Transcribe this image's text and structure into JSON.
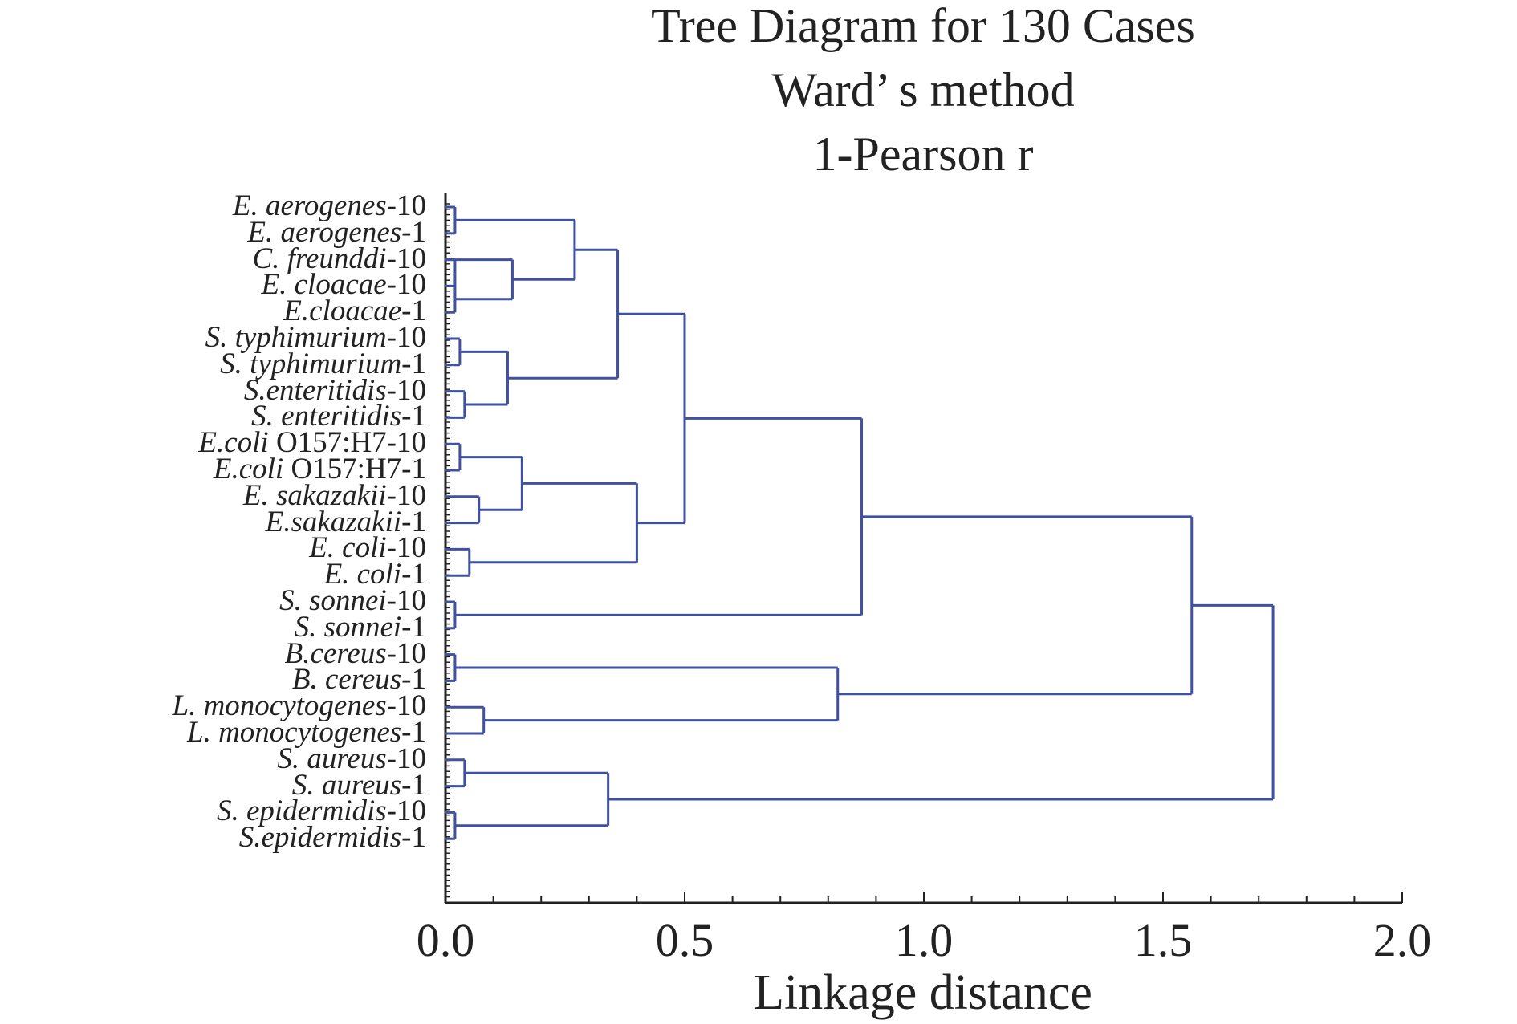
{
  "chart_data": {
    "type": "dendrogram",
    "title": "Tree Diagram for 130 Cases",
    "subtitle_lines": [
      "Ward’ s method",
      "1-Pearson r"
    ],
    "xlabel": "Linkage distance",
    "xlim": [
      0.0,
      2.0
    ],
    "xticks": [
      "0.0",
      "0.5",
      "1.0",
      "1.5",
      "2.0"
    ],
    "grid": false,
    "line_color": "#3f51a0",
    "labels": [
      {
        "name": "E. aerogenes",
        "suffix": "-10"
      },
      {
        "name": "E. aerogenes",
        "suffix": "-1"
      },
      {
        "name": "C. freunddi",
        "suffix": "-10"
      },
      {
        "name": "E. cloacae",
        "suffix": "-10"
      },
      {
        "name": "E.cloacae",
        "suffix": "-1"
      },
      {
        "name": "S. typhimurium",
        "suffix": "-10"
      },
      {
        "name": "S. typhimurium",
        "suffix": "-1"
      },
      {
        "name": "S.enteritidis",
        "suffix": "-10"
      },
      {
        "name": "S. enteritidis",
        "suffix": "-1"
      },
      {
        "name": "E.coli",
        "suffix": " O157:H7-10"
      },
      {
        "name": "E.coli",
        "suffix": " O157:H7-1"
      },
      {
        "name": "E. sakazakii",
        "suffix": "-10"
      },
      {
        "name": "E.sakazakii",
        "suffix": "-1"
      },
      {
        "name": "E. coli",
        "suffix": "-10"
      },
      {
        "name": "E. coli",
        "suffix": "-1"
      },
      {
        "name": "S. sonnei",
        "suffix": "-10"
      },
      {
        "name": "S. sonnei",
        "suffix": "-1"
      },
      {
        "name": "B.cereus",
        "suffix": "-10"
      },
      {
        "name": "B. cereus",
        "suffix": "-1"
      },
      {
        "name": "L. monocytogenes",
        "suffix": "-10"
      },
      {
        "name": "L. monocytogenes",
        "suffix": "-1"
      },
      {
        "name": "S. aureus",
        "suffix": "-10"
      },
      {
        "name": "S. aureus",
        "suffix": "-1"
      },
      {
        "name": "S. epidermidis",
        "suffix": "-10"
      },
      {
        "name": "S.epidermidis",
        "suffix": "-1"
      }
    ],
    "merges": [
      {
        "leaves": [
          1,
          2
        ],
        "height": 0.02
      },
      {
        "leaves": [
          3,
          4
        ],
        "height": 0.02
      },
      {
        "leaves": [
          4,
          5
        ],
        "height": 0.02
      },
      {
        "leaves": [
          6,
          7
        ],
        "height": 0.03
      },
      {
        "leaves": [
          8,
          9
        ],
        "height": 0.04
      },
      {
        "leaves": [
          10,
          11
        ],
        "height": 0.03
      },
      {
        "leaves": [
          12,
          13
        ],
        "height": 0.07
      },
      {
        "leaves": [
          14,
          15
        ],
        "height": 0.05
      },
      {
        "leaves": [
          16,
          17
        ],
        "height": 0.02
      },
      {
        "leaves": [
          18,
          19
        ],
        "height": 0.02
      },
      {
        "leaves": [
          20,
          21
        ],
        "height": 0.08
      },
      {
        "leaves": [
          22,
          23
        ],
        "height": 0.04
      },
      {
        "leaves": [
          24,
          25
        ],
        "height": 0.02
      },
      {
        "leaves": [
          3,
          5
        ],
        "height": 0.14
      },
      {
        "leaves": [
          6,
          9
        ],
        "height": 0.13
      },
      {
        "leaves": [
          10,
          13
        ],
        "height": 0.16
      },
      {
        "leaves": [
          1,
          5
        ],
        "height": 0.27
      },
      {
        "leaves": [
          1,
          9
        ],
        "height": 0.36
      },
      {
        "leaves": [
          10,
          15
        ],
        "height": 0.4
      },
      {
        "leaves": [
          1,
          15
        ],
        "height": 0.5
      },
      {
        "leaves": [
          1,
          17
        ],
        "height": 0.87
      },
      {
        "leaves": [
          18,
          21
        ],
        "height": 0.82
      },
      {
        "leaves": [
          22,
          25
        ],
        "height": 0.34
      },
      {
        "leaves": [
          1,
          21
        ],
        "height": 1.56
      },
      {
        "leaves": [
          1,
          25
        ],
        "height": 1.73
      }
    ]
  }
}
